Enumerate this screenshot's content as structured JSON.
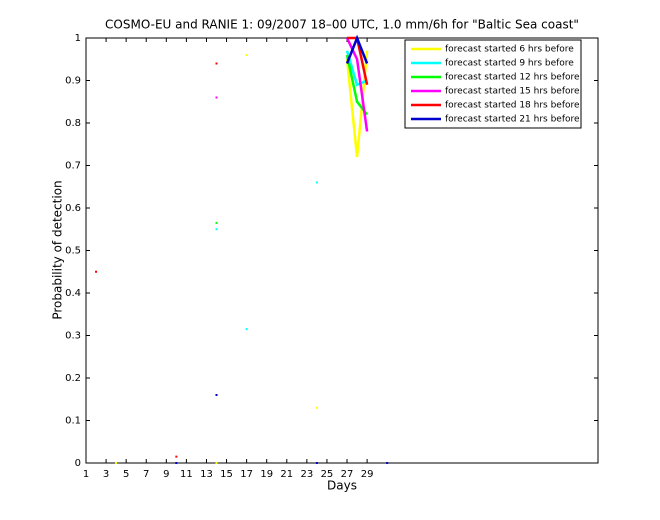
{
  "chart_data": {
    "type": "line",
    "title": "COSMO-EU and RANIE 1: 09/2007 18–00 UTC, 1.0 mm/6h for \"Baltic Sea coast\"",
    "xlabel": "Days",
    "ylabel": "Probability of detection",
    "x": [
      1,
      2,
      3,
      4,
      5,
      6,
      7,
      8,
      9,
      10,
      11,
      12,
      13,
      14,
      15,
      16,
      17,
      18,
      19,
      20,
      21,
      22,
      23,
      24,
      25,
      26,
      27,
      28,
      29,
      30,
      31
    ],
    "xlim": [
      1,
      52
    ],
    "ylim": [
      0,
      1
    ],
    "xticks": [
      1,
      3,
      5,
      7,
      9,
      11,
      13,
      15,
      17,
      19,
      21,
      23,
      25,
      27,
      29
    ],
    "yticks": [
      0,
      0.1,
      0.2,
      0.3,
      0.4,
      0.5,
      0.6,
      0.7,
      0.8,
      0.9,
      1
    ],
    "legend": "upper right",
    "series": [
      {
        "name": "forecast started 6 hrs before",
        "color": "#ffff00",
        "values": [
          null,
          null,
          null,
          0,
          null,
          null,
          null,
          null,
          null,
          null,
          null,
          null,
          null,
          0,
          null,
          null,
          0.96,
          null,
          null,
          null,
          null,
          null,
          null,
          0.13,
          null,
          null,
          0.95,
          0.72,
          0.97,
          null,
          null
        ]
      },
      {
        "name": "forecast started 9 hrs before",
        "color": "#00ffff",
        "values": [
          null,
          null,
          null,
          null,
          null,
          null,
          null,
          null,
          null,
          null,
          null,
          null,
          null,
          0.55,
          null,
          null,
          0.315,
          null,
          null,
          null,
          null,
          null,
          null,
          0.66,
          null,
          null,
          0.97,
          0.89,
          0.9,
          null,
          null
        ]
      },
      {
        "name": "forecast started 12 hrs before",
        "color": "#00ff00",
        "values": [
          null,
          null,
          null,
          null,
          null,
          null,
          null,
          null,
          null,
          null,
          null,
          null,
          null,
          0.565,
          null,
          null,
          null,
          null,
          null,
          null,
          null,
          null,
          null,
          null,
          null,
          null,
          0.96,
          0.85,
          0.82,
          null,
          null
        ]
      },
      {
        "name": "forecast started 15 hrs before",
        "color": "#ff00ff",
        "values": [
          null,
          null,
          null,
          null,
          null,
          null,
          null,
          null,
          null,
          null,
          null,
          null,
          null,
          0.86,
          null,
          null,
          null,
          null,
          null,
          null,
          null,
          null,
          null,
          null,
          null,
          null,
          1.0,
          0.95,
          0.78,
          null,
          null
        ]
      },
      {
        "name": "forecast started 18 hrs before",
        "color": "#ff0000",
        "values": [
          null,
          0.45,
          null,
          null,
          null,
          null,
          null,
          null,
          null,
          0.015,
          null,
          null,
          null,
          0.94,
          null,
          null,
          null,
          null,
          null,
          null,
          null,
          null,
          null,
          null,
          null,
          null,
          1.0,
          1.0,
          0.89,
          null,
          null
        ]
      },
      {
        "name": "forecast started 21 hrs before",
        "color": "#0000cc",
        "values": [
          null,
          null,
          null,
          null,
          null,
          null,
          null,
          null,
          null,
          0,
          null,
          null,
          null,
          0.16,
          null,
          null,
          null,
          null,
          null,
          null,
          null,
          null,
          null,
          0,
          null,
          null,
          0.94,
          1.0,
          0.94,
          null,
          0
        ]
      }
    ]
  }
}
